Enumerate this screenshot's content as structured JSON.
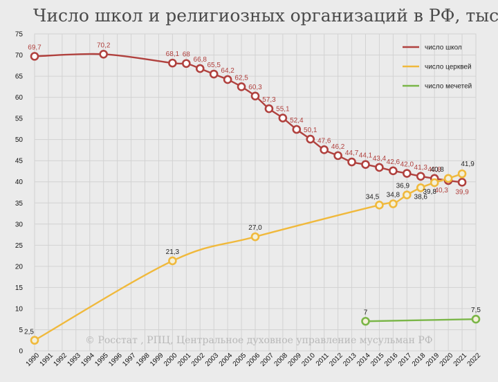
{
  "title": "Число школ и религиозных организаций в РФ, тысяч",
  "credit": "© Росстат , РПЦ, Центральное духовное управление мусульман РФ",
  "colors": {
    "schools": "#b0413e",
    "churches": "#f0b93c",
    "mosques": "#7ab648",
    "grid": "#d2d2d2",
    "background": "#ebebeb"
  },
  "chart_data": {
    "type": "line",
    "title": "Число школ и религиозных организаций в РФ, тысяч",
    "xlabel": "",
    "ylabel": "",
    "ylim": [
      0,
      75
    ],
    "yticks": [
      0,
      5,
      10,
      15,
      20,
      25,
      30,
      35,
      40,
      45,
      50,
      55,
      60,
      65,
      70,
      75
    ],
    "categories": [
      "1990",
      "1991",
      "1992",
      "1993",
      "1994",
      "1995",
      "1996",
      "1997",
      "1998",
      "1999",
      "2000",
      "2001",
      "2002",
      "2003",
      "2004",
      "2005",
      "2006",
      "2007",
      "2008",
      "2009",
      "2010",
      "2011",
      "2012",
      "2013",
      "2014",
      "2015",
      "2016",
      "2017",
      "2018",
      "2019",
      "2020",
      "2021",
      "2022"
    ],
    "grid": true,
    "legend": "top-right",
    "series": [
      {
        "name": "число школ",
        "key": "schools",
        "points": [
          {
            "x": "1990",
            "y": 69.7,
            "label": "69,7"
          },
          {
            "x": "1995",
            "y": 70.2,
            "label": "70,2"
          },
          {
            "x": "2000",
            "y": 68.1,
            "label": "68,1"
          },
          {
            "x": "2001",
            "y": 68.0,
            "label": "68"
          },
          {
            "x": "2002",
            "y": 66.8,
            "label": "66,8"
          },
          {
            "x": "2003",
            "y": 65.5,
            "label": "65,5"
          },
          {
            "x": "2004",
            "y": 64.2,
            "label": "64,2"
          },
          {
            "x": "2005",
            "y": 62.5,
            "label": "62,5"
          },
          {
            "x": "2006",
            "y": 60.3,
            "label": "60,3"
          },
          {
            "x": "2007",
            "y": 57.3,
            "label": "57,3"
          },
          {
            "x": "2008",
            "y": 55.1,
            "label": "55,1"
          },
          {
            "x": "2009",
            "y": 52.4,
            "label": "52,4"
          },
          {
            "x": "2010",
            "y": 50.1,
            "label": "50,1"
          },
          {
            "x": "2011",
            "y": 47.6,
            "label": "47,6"
          },
          {
            "x": "2012",
            "y": 46.2,
            "label": "46,2"
          },
          {
            "x": "2013",
            "y": 44.7,
            "label": "44,7"
          },
          {
            "x": "2014",
            "y": 44.1,
            "label": "44,1"
          },
          {
            "x": "2015",
            "y": 43.4,
            "label": "43,4"
          },
          {
            "x": "2016",
            "y": 42.6,
            "label": "42,6"
          },
          {
            "x": "2017",
            "y": 42.0,
            "label": "42,0"
          },
          {
            "x": "2018",
            "y": 41.3,
            "label": "41,3"
          },
          {
            "x": "2019",
            "y": 40.8,
            "label": "40,8"
          },
          {
            "x": "2020",
            "y": 40.3,
            "label": "40,3"
          },
          {
            "x": "2021",
            "y": 39.9,
            "label": "39,9"
          }
        ]
      },
      {
        "name": "число церквей",
        "key": "churches",
        "points": [
          {
            "x": "1990",
            "y": 2.5,
            "label": "2,5"
          },
          {
            "x": "2000",
            "y": 21.3,
            "label": "21,3"
          },
          {
            "x": "2006",
            "y": 27.0,
            "label": "27,0"
          },
          {
            "x": "2015",
            "y": 34.5,
            "label": "34,5"
          },
          {
            "x": "2016",
            "y": 34.8,
            "label": "34,8"
          },
          {
            "x": "2017",
            "y": 36.9,
            "label": "36,9"
          },
          {
            "x": "2018",
            "y": 38.6,
            "label": "38,6"
          },
          {
            "x": "2019",
            "y": 39.8,
            "label": "39,8"
          },
          {
            "x": "2020",
            "y": 40.8,
            "label": "40,8"
          },
          {
            "x": "2021",
            "y": 41.9,
            "label": "41,9"
          }
        ]
      },
      {
        "name": "число мечетей",
        "key": "mosques",
        "points": [
          {
            "x": "2014",
            "y": 7.0,
            "label": "7"
          },
          {
            "x": "2022",
            "y": 7.5,
            "label": "7,5"
          }
        ]
      }
    ]
  }
}
